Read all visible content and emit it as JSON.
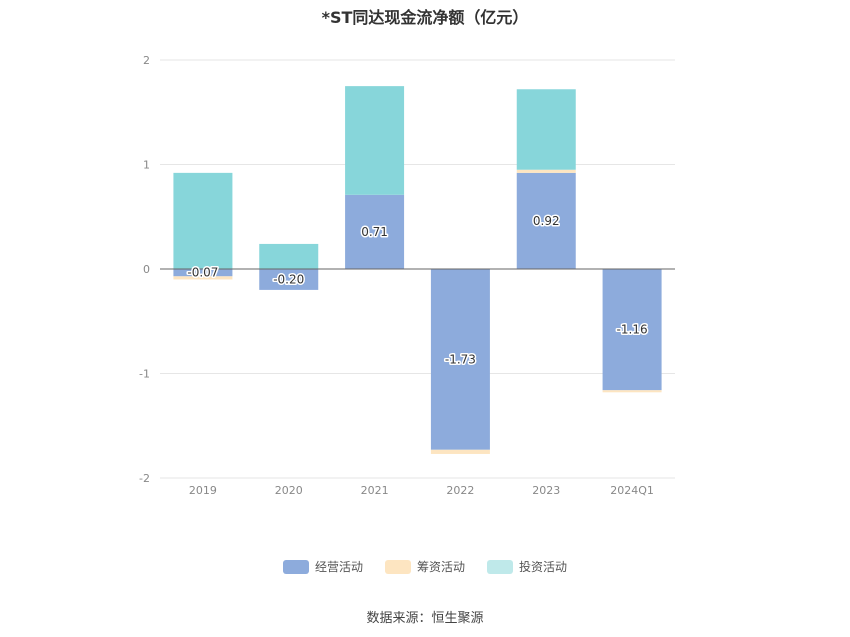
{
  "chart_data": {
    "type": "bar",
    "stacked": true,
    "title": "*ST同达现金流净额（亿元）",
    "categories": [
      "2019",
      "2020",
      "2021",
      "2022",
      "2023",
      "2024Q1"
    ],
    "ylim": [
      -2,
      2
    ],
    "yticks": [
      2,
      1,
      0,
      -1,
      -2
    ],
    "grid": true,
    "legend_position": "bottom",
    "series": [
      {
        "name": "经营活动",
        "color": "#8dabdc",
        "values": [
          -0.07,
          -0.2,
          0.71,
          -1.73,
          0.92,
          -1.16
        ],
        "labels": [
          "-0.07",
          "-0.20",
          "0.71",
          "-1.73",
          "0.92",
          "-1.16"
        ]
      },
      {
        "name": "筹资活动",
        "color": "#fde5c1",
        "values": [
          -0.03,
          0.0,
          0.0,
          -0.04,
          0.03,
          -0.02
        ]
      },
      {
        "name": "投资活动",
        "color": "#87d6da",
        "values": [
          0.92,
          0.24,
          1.04,
          0.0,
          0.77,
          0.0
        ]
      }
    ]
  },
  "source": "数据来源：恒生聚源"
}
